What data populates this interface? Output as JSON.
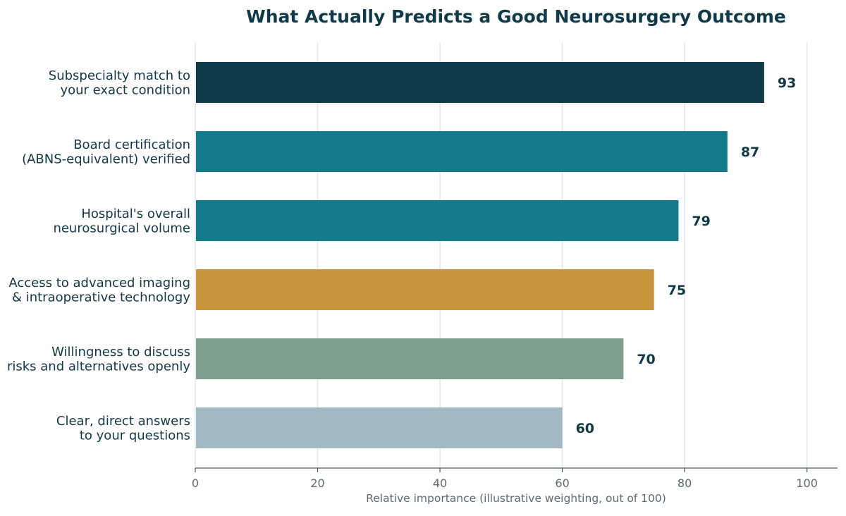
{
  "chart_data": {
    "type": "bar",
    "orientation": "horizontal",
    "title": "What Actually Predicts a Good Neurosurgery Outcome",
    "xlabel": "Relative importance (illustrative weighting, out of 100)",
    "ylabel": "",
    "xlim": [
      0,
      105
    ],
    "xticks": [
      0,
      20,
      40,
      60,
      80,
      100
    ],
    "grid": "vertical",
    "categories": [
      [
        "Subspecialty match to",
        "your exact condition"
      ],
      [
        "Board certification",
        "(ABNS-equivalent) verified"
      ],
      [
        "Hospital's overall",
        "neurosurgical volume"
      ],
      [
        "Access to advanced imaging",
        "& intraoperative technology"
      ],
      [
        "Willingness to discuss",
        "risks and alternatives openly"
      ],
      [
        "Clear, direct answers",
        "to your questions"
      ]
    ],
    "values": [
      93,
      87,
      79,
      75,
      70,
      60
    ],
    "colors": [
      "#0f3a4a",
      "#147b8a",
      "#147b8a",
      "#c9953a",
      "#7f9f8a",
      "#a2b8c2"
    ]
  }
}
